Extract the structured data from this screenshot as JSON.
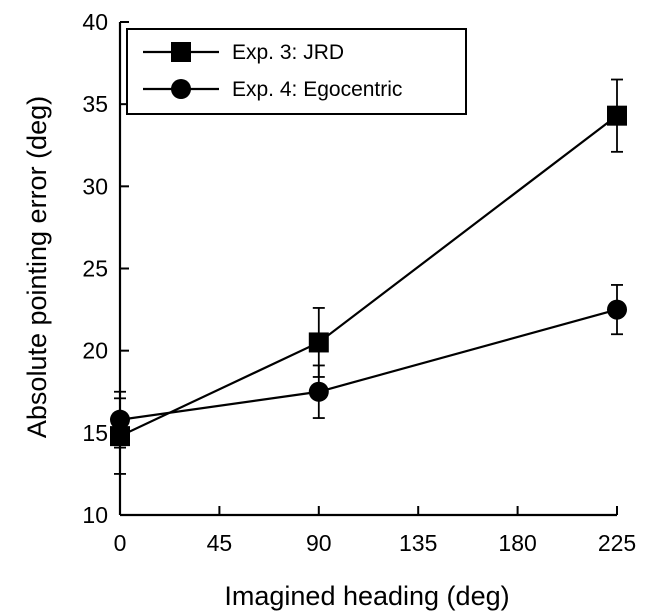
{
  "chart_data": {
    "type": "line",
    "xlabel": "Imagined heading (deg)",
    "ylabel": "Absolute pointing error (deg)",
    "xlim": [
      0,
      225
    ],
    "ylim": [
      10,
      40
    ],
    "xticks": [
      0,
      45,
      90,
      135,
      180,
      225
    ],
    "yticks": [
      10,
      15,
      20,
      25,
      30,
      35,
      40
    ],
    "grid": false,
    "legend_position": "top-left",
    "series": [
      {
        "name": "Exp. 3: JRD",
        "marker": "square",
        "color": "#000000",
        "x": [
          0,
          90,
          225
        ],
        "y": [
          14.8,
          20.5,
          34.3
        ],
        "error": [
          2.3,
          2.1,
          2.2
        ]
      },
      {
        "name": "Exp. 4: Egocentric",
        "marker": "circle",
        "color": "#000000",
        "x": [
          0,
          90,
          225
        ],
        "y": [
          15.8,
          17.5,
          22.5
        ],
        "error": [
          1.7,
          1.6,
          1.5
        ]
      }
    ]
  }
}
